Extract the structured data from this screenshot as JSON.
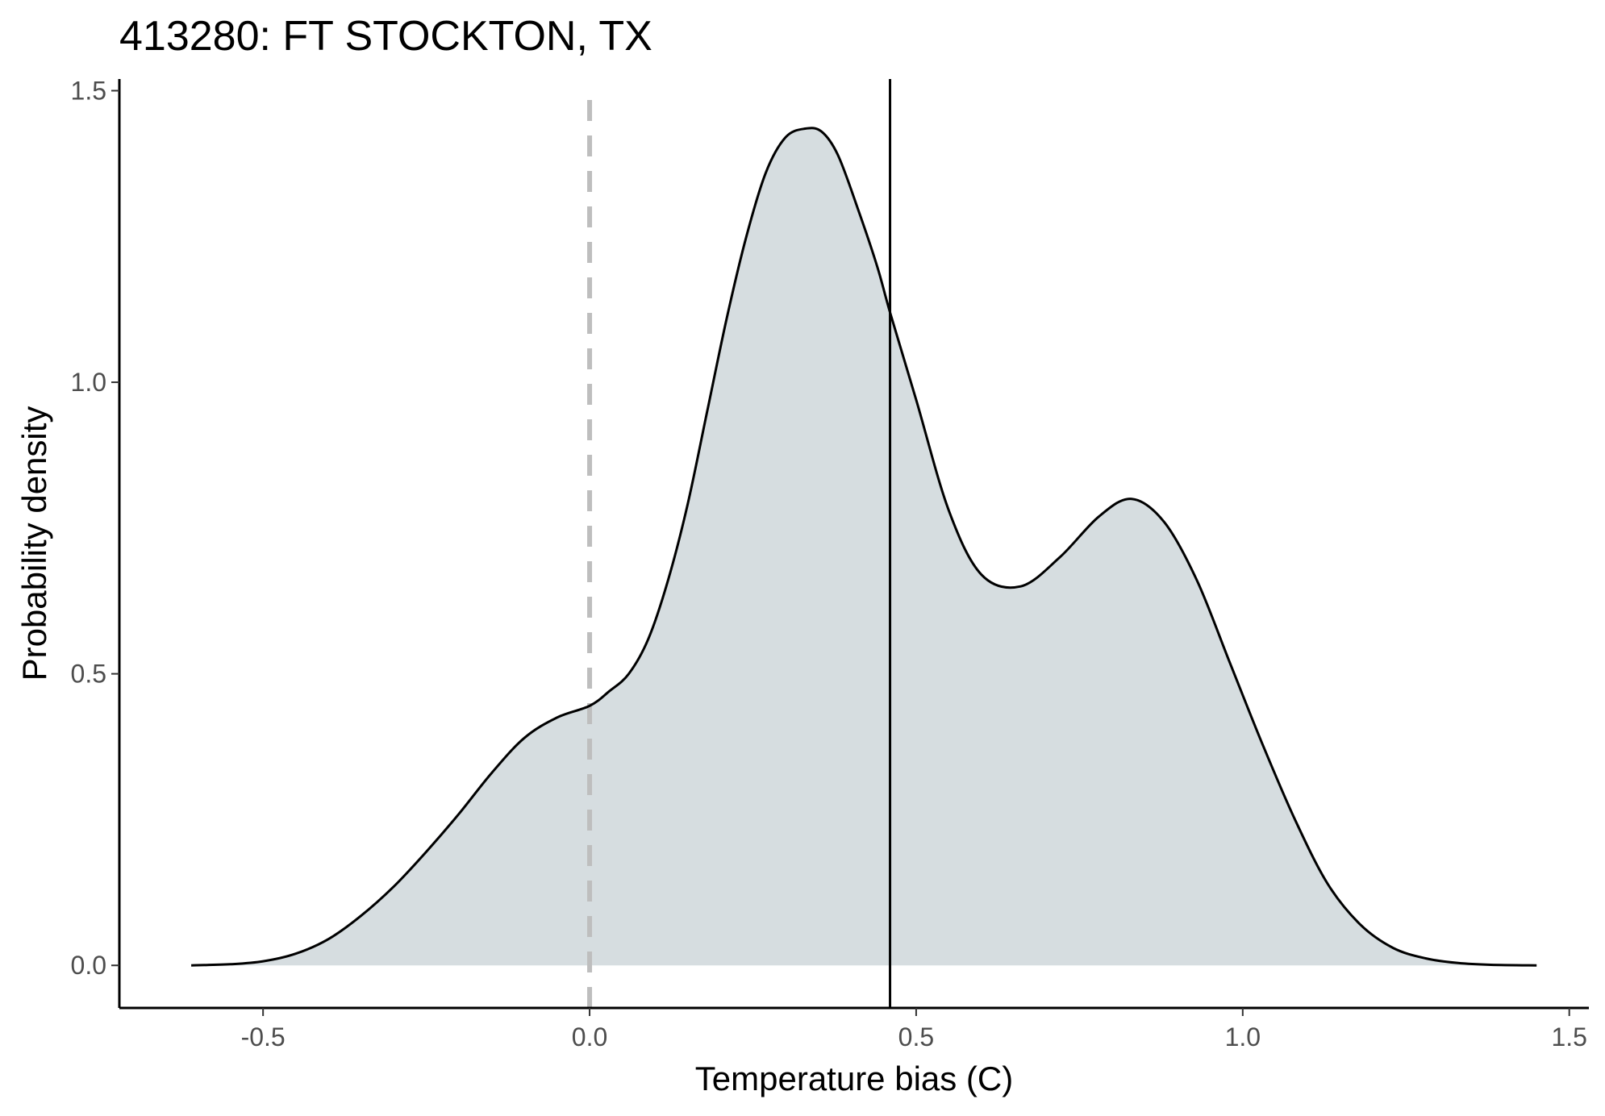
{
  "chart_data": {
    "type": "area",
    "title": "413280: FT STOCKTON, TX",
    "xlabel": "Temperature bias (C)",
    "ylabel": "Probability density",
    "xlim": [
      -0.72,
      1.53
    ],
    "ylim": [
      -0.073,
      1.52
    ],
    "xticks": [
      {
        "value": -0.5,
        "label": "-0.5"
      },
      {
        "value": 0.0,
        "label": "0.0"
      },
      {
        "value": 0.5,
        "label": "0.5"
      },
      {
        "value": 1.0,
        "label": "1.0"
      },
      {
        "value": 1.5,
        "label": "1.5"
      }
    ],
    "yticks": [
      {
        "value": 0.0,
        "label": "0.0"
      },
      {
        "value": 0.5,
        "label": "0.5"
      },
      {
        "value": 1.0,
        "label": "1.0"
      },
      {
        "value": 1.5,
        "label": "1.5"
      }
    ],
    "series": [
      {
        "x": [
          -0.61,
          -0.55,
          -0.5,
          -0.45,
          -0.4,
          -0.35,
          -0.3,
          -0.25,
          -0.2,
          -0.15,
          -0.1,
          -0.05,
          0.0,
          0.03,
          0.06,
          0.09,
          0.12,
          0.15,
          0.18,
          0.21,
          0.24,
          0.27,
          0.3,
          0.33,
          0.355,
          0.38,
          0.41,
          0.44,
          0.46,
          0.5,
          0.55,
          0.6,
          0.66,
          0.72,
          0.78,
          0.83,
          0.88,
          0.93,
          0.98,
          1.03,
          1.08,
          1.13,
          1.18,
          1.23,
          1.28,
          1.33,
          1.38,
          1.45
        ],
        "y": [
          0.0,
          0.002,
          0.007,
          0.02,
          0.045,
          0.085,
          0.135,
          0.195,
          0.26,
          0.33,
          0.39,
          0.425,
          0.445,
          0.47,
          0.5,
          0.56,
          0.66,
          0.79,
          0.95,
          1.11,
          1.25,
          1.36,
          1.42,
          1.435,
          1.43,
          1.39,
          1.3,
          1.2,
          1.12,
          0.97,
          0.78,
          0.67,
          0.65,
          0.7,
          0.77,
          0.8,
          0.76,
          0.66,
          0.52,
          0.38,
          0.25,
          0.14,
          0.07,
          0.03,
          0.012,
          0.004,
          0.001,
          0.0
        ]
      }
    ],
    "fill_color": "#d6dde0",
    "line_color": "#000000",
    "reference_lines": [
      {
        "x": 0.0,
        "style": "dashed",
        "color": "#bebebe"
      },
      {
        "x": 0.46,
        "style": "solid",
        "color": "#000000"
      }
    ],
    "grid": false,
    "legend": "none"
  }
}
